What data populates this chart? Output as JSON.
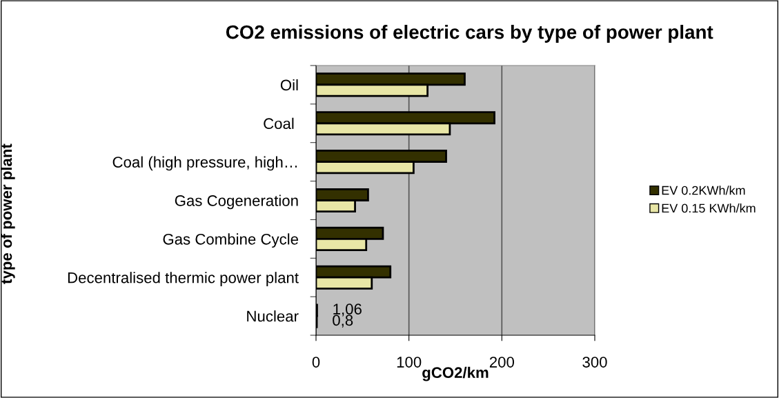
{
  "chart_data": {
    "type": "bar",
    "orientation": "horizontal",
    "title": "CO2 emissions of electric cars by type of power plant",
    "xlabel": "gCO2/km",
    "ylabel": "type of power plant",
    "categories": [
      "Oil",
      "Coal ",
      "Coal (high pressure, high…",
      "Gas Cogeneration",
      "Gas Combine Cycle",
      "Decentralised thermic power plant",
      "Nuclear"
    ],
    "series": [
      {
        "name": "EV 0.2KWh/km",
        "color": "#333000",
        "values": [
          160,
          192,
          140,
          56,
          72,
          80,
          1.06
        ],
        "value_labels": [
          null,
          null,
          null,
          null,
          null,
          null,
          "1,06"
        ]
      },
      {
        "name": "EV 0.15 KWh/km",
        "color": "#e8e6a6",
        "values": [
          120,
          144,
          105,
          42,
          54,
          60,
          0.8
        ],
        "value_labels": [
          null,
          null,
          null,
          null,
          null,
          null,
          "0,8"
        ]
      }
    ],
    "xlim": [
      0,
      300
    ],
    "xticks": [
      0,
      100,
      200,
      300
    ],
    "grid": "x",
    "legend": "right"
  }
}
